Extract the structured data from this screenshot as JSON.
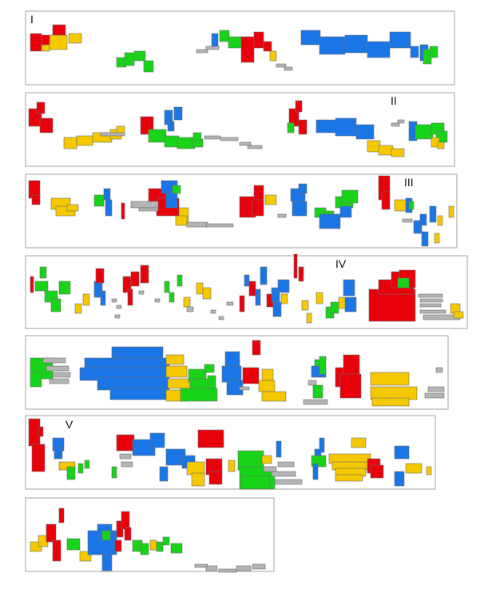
{
  "colors": {
    "red": "#e8000b",
    "blue": "#1a75e6",
    "green": "#18d418",
    "yellow": "#f5c800",
    "gray": "#b4b4b4",
    "outline": "#6e6e6e",
    "panel_border": "#a0a0a0"
  },
  "panels": [
    {
      "id": "row-1",
      "label": "I"
    },
    {
      "id": "row-2",
      "label": "II"
    },
    {
      "id": "row-3",
      "label": "III"
    },
    {
      "id": "row-4",
      "label": "IV"
    },
    {
      "id": "row-5",
      "label": ""
    },
    {
      "id": "row-6",
      "label": "V"
    },
    {
      "id": "row-7",
      "label": ""
    }
  ]
}
